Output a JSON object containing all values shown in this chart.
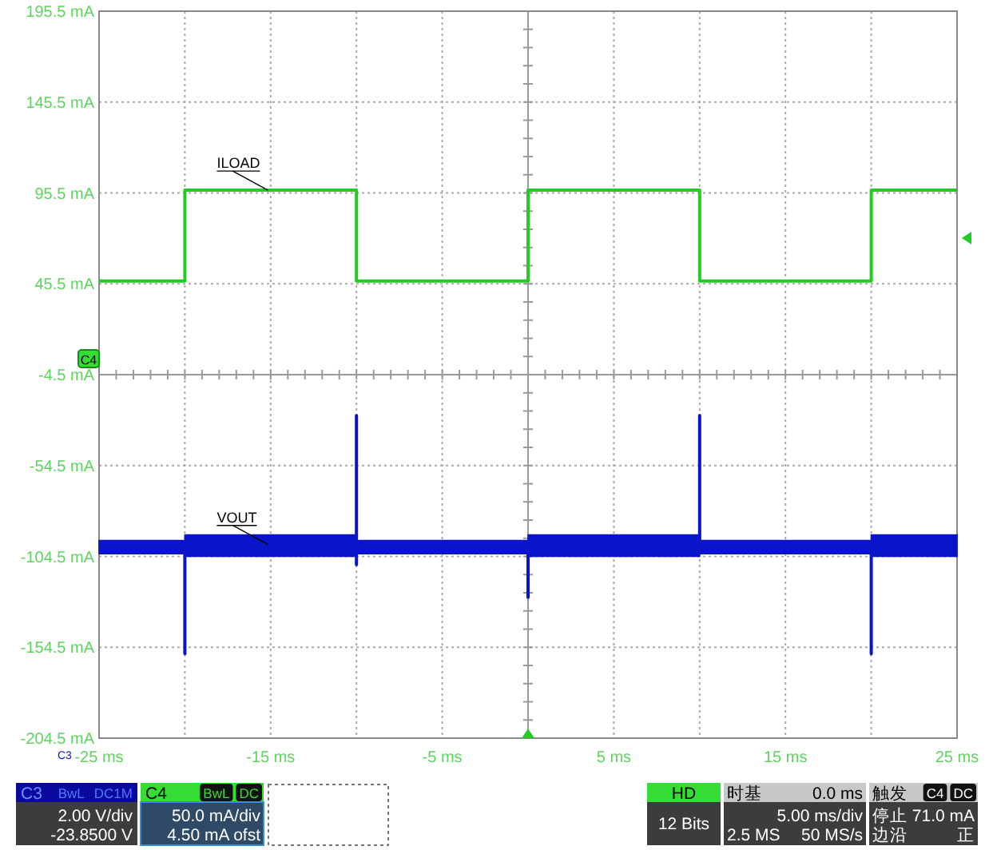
{
  "chart_data": {
    "type": "line",
    "xlim": [
      -25,
      25
    ],
    "xticks": [
      {
        "value": -25,
        "label": "-25 ms"
      },
      {
        "value": -20,
        "label": null
      },
      {
        "value": -15,
        "label": "-15 ms"
      },
      {
        "value": -10,
        "label": null
      },
      {
        "value": -5,
        "label": "-5 ms"
      },
      {
        "value": 0,
        "label": null
      },
      {
        "value": 5,
        "label": "5 ms"
      },
      {
        "value": 10,
        "label": null
      },
      {
        "value": 15,
        "label": "15 ms"
      },
      {
        "value": 20,
        "label": null
      },
      {
        "value": 25,
        "label": "25 ms"
      }
    ],
    "ylim": [
      -204.5,
      195.5
    ],
    "yticks": [
      {
        "value": -204.5,
        "label": "-204.5 mA"
      },
      {
        "value": -154.5,
        "label": "-154.5 mA"
      },
      {
        "value": -104.5,
        "label": "-104.5 mA"
      },
      {
        "value": -54.5,
        "label": "-54.5 mA"
      },
      {
        "value": -4.5,
        "label": "-4.5 mA"
      },
      {
        "value": 45.5,
        "label": "45.5 mA"
      },
      {
        "value": 95.5,
        "label": "95.5 mA"
      },
      {
        "value": 145.5,
        "label": "145.5 mA"
      },
      {
        "value": 195.5,
        "label": "195.5 mA"
      }
    ],
    "grid": true,
    "series": [
      {
        "name": "ILOAD",
        "color": "#22cc22",
        "x": [
          -25,
          -20,
          -20,
          -10,
          -10,
          0,
          0,
          10,
          10,
          20,
          20,
          25
        ],
        "values": [
          47,
          47,
          97,
          97,
          47,
          47,
          97,
          97,
          47,
          47,
          97,
          97
        ]
      },
      {
        "name": "VOUT",
        "color": "#0a14c8",
        "x": [
          -25,
          -20,
          -20,
          -20,
          -10,
          -10,
          -10,
          -10,
          0,
          0,
          0,
          10,
          10,
          10,
          20,
          20,
          20,
          25
        ],
        "values": [
          -100,
          -100,
          -158,
          -98,
          -98,
          -27,
          -109,
          -100,
          -100,
          -127,
          -98,
          -98,
          -27,
          -100,
          -100,
          -158,
          -98,
          -98
        ],
        "lower": [
          -103,
          -103,
          -104.5,
          -104.5,
          -104.5,
          -104.5,
          -103,
          -103,
          -103,
          -104.5,
          -104.5,
          -104.5,
          -104.5,
          -103,
          -103,
          -104.5,
          -104.5,
          -104.5
        ],
        "upper": [
          -95.7,
          -95.7,
          -92.7,
          -92.7,
          -92.7,
          -92.7,
          -95.7,
          -95.7,
          -95.7,
          -92.7,
          -92.7,
          -92.7,
          -92.7,
          -95.7,
          -95.7,
          -92.7,
          -92.7,
          -92.7
        ]
      }
    ],
    "annotations": [
      "C3",
      "BwL",
      "DC1M",
      "2.00 V/div",
      "-23.8500 V",
      "C4",
      "BwL",
      "DC",
      "50.0 mA/div",
      "4.50 mA ofst",
      "HD",
      "12 Bits",
      "时基",
      "0.0 ms",
      "5.00 ms/div",
      "2.5 MS",
      "50 MS/s",
      "触发",
      "C4",
      "DC",
      "停止",
      "71.0 mA",
      "边沿",
      "正",
      "C4",
      "C3"
    ]
  }
}
